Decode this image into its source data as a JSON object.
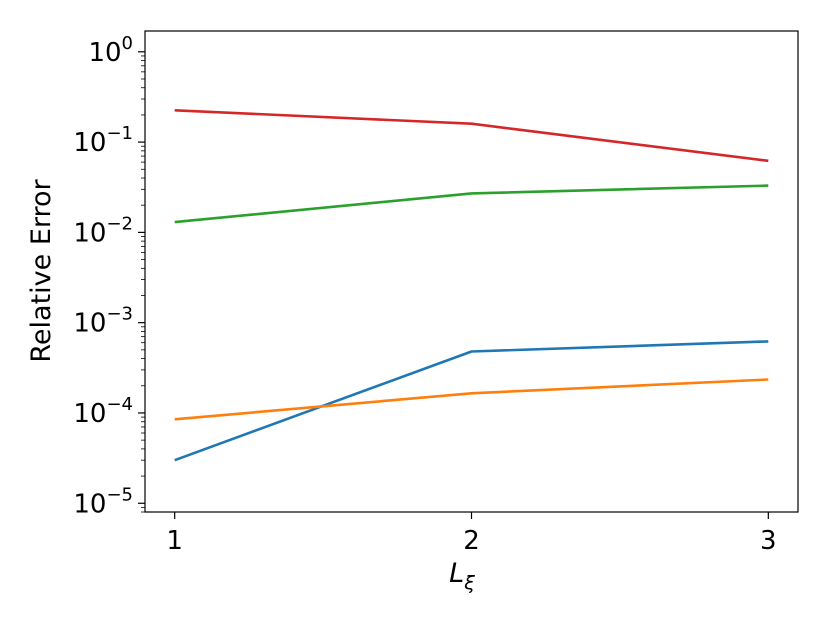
{
  "chart_data": {
    "type": "line",
    "xlabel": "L",
    "xlabel_subscript": "ξ",
    "ylabel": "Relative Error",
    "x_ticks": [
      1,
      2,
      3
    ],
    "x_tick_labels": [
      "1",
      "2",
      "3"
    ],
    "x_range": [
      0.9,
      3.1
    ],
    "y_scale": "log",
    "y_range": [
      8e-06,
      1.7
    ],
    "y_ticks": [
      1e-05,
      0.0001,
      0.001,
      0.01,
      0.1,
      1
    ],
    "y_tick_labels": [
      {
        "base": "10",
        "exp": "−5"
      },
      {
        "base": "10",
        "exp": "−4"
      },
      {
        "base": "10",
        "exp": "−3"
      },
      {
        "base": "10",
        "exp": "−2"
      },
      {
        "base": "10",
        "exp": "−1"
      },
      {
        "base": "10",
        "exp": "0"
      }
    ],
    "grid": false,
    "legend": false,
    "x": [
      1,
      2,
      3
    ],
    "series": [
      {
        "color": "#1f77b4",
        "values": [
          3e-05,
          0.00048,
          0.00062
        ]
      },
      {
        "color": "#ff7f0e",
        "values": [
          8.5e-05,
          0.000165,
          0.000235
        ]
      },
      {
        "color": "#2ca02c",
        "values": [
          0.013,
          0.027,
          0.033
        ]
      },
      {
        "color": "#d62728",
        "values": [
          0.225,
          0.16,
          0.062
        ]
      }
    ]
  }
}
